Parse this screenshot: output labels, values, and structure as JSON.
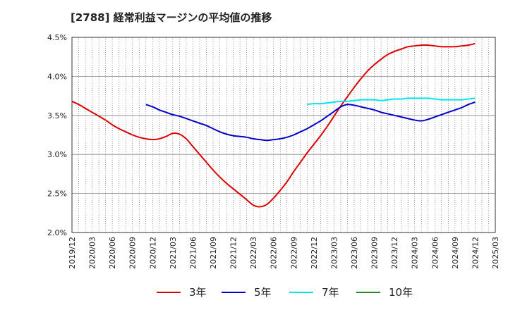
{
  "chart_data": {
    "type": "line",
    "title": "[2788]  経常利益マージンの平均値の推移",
    "y_ticks": [
      "2.0%",
      "2.5%",
      "3.0%",
      "3.5%",
      "4.0%",
      "4.5%"
    ],
    "ylim": [
      2.0,
      4.5
    ],
    "x_ticks": [
      "2019/12",
      "2020/03",
      "2020/06",
      "2020/09",
      "2020/12",
      "2021/03",
      "2021/06",
      "2021/09",
      "2021/12",
      "2022/03",
      "2022/06",
      "2022/09",
      "2022/12",
      "2023/03",
      "2023/06",
      "2023/09",
      "2023/12",
      "2024/03",
      "2024/06",
      "2024/09",
      "2024/12",
      "2025/03"
    ],
    "grid": true,
    "legend_position": "bottom",
    "series": [
      {
        "name": "3年",
        "color": "#dd0000",
        "points": [
          [
            "2019/12",
            3.68
          ],
          [
            "2020/01",
            3.64
          ],
          [
            "2020/02",
            3.59
          ],
          [
            "2020/03",
            3.54
          ],
          [
            "2020/04",
            3.49
          ],
          [
            "2020/05",
            3.44
          ],
          [
            "2020/06",
            3.38
          ],
          [
            "2020/07",
            3.33
          ],
          [
            "2020/08",
            3.29
          ],
          [
            "2020/09",
            3.25
          ],
          [
            "2020/10",
            3.22
          ],
          [
            "2020/11",
            3.2
          ],
          [
            "2020/12",
            3.19
          ],
          [
            "2021/01",
            3.2
          ],
          [
            "2021/02",
            3.23
          ],
          [
            "2021/03",
            3.27
          ],
          [
            "2021/04",
            3.26
          ],
          [
            "2021/05",
            3.2
          ],
          [
            "2021/06",
            3.1
          ],
          [
            "2021/07",
            3.0
          ],
          [
            "2021/08",
            2.9
          ],
          [
            "2021/09",
            2.8
          ],
          [
            "2021/10",
            2.71
          ],
          [
            "2021/11",
            2.63
          ],
          [
            "2021/12",
            2.56
          ],
          [
            "2022/01",
            2.49
          ],
          [
            "2022/02",
            2.42
          ],
          [
            "2022/03",
            2.35
          ],
          [
            "2022/04",
            2.33
          ],
          [
            "2022/05",
            2.36
          ],
          [
            "2022/06",
            2.44
          ],
          [
            "2022/07",
            2.54
          ],
          [
            "2022/08",
            2.65
          ],
          [
            "2022/09",
            2.78
          ],
          [
            "2022/10",
            2.9
          ],
          [
            "2022/11",
            3.02
          ],
          [
            "2022/12",
            3.13
          ],
          [
            "2023/01",
            3.24
          ],
          [
            "2023/02",
            3.36
          ],
          [
            "2023/03",
            3.49
          ],
          [
            "2023/04",
            3.62
          ],
          [
            "2023/05",
            3.74
          ],
          [
            "2023/06",
            3.86
          ],
          [
            "2023/07",
            3.97
          ],
          [
            "2023/08",
            4.07
          ],
          [
            "2023/09",
            4.15
          ],
          [
            "2023/10",
            4.22
          ],
          [
            "2023/11",
            4.28
          ],
          [
            "2023/12",
            4.32
          ],
          [
            "2024/01",
            4.35
          ],
          [
            "2024/02",
            4.38
          ],
          [
            "2024/03",
            4.39
          ],
          [
            "2024/04",
            4.4
          ],
          [
            "2024/05",
            4.4
          ],
          [
            "2024/06",
            4.39
          ],
          [
            "2024/07",
            4.38
          ],
          [
            "2024/08",
            4.38
          ],
          [
            "2024/09",
            4.38
          ],
          [
            "2024/10",
            4.39
          ],
          [
            "2024/11",
            4.4
          ],
          [
            "2024/12",
            4.42
          ]
        ]
      },
      {
        "name": "5年",
        "color": "#0000cc",
        "points": [
          [
            "2020/11",
            3.64
          ],
          [
            "2020/12",
            3.61
          ],
          [
            "2021/01",
            3.57
          ],
          [
            "2021/02",
            3.54
          ],
          [
            "2021/03",
            3.51
          ],
          [
            "2021/04",
            3.49
          ],
          [
            "2021/05",
            3.46
          ],
          [
            "2021/06",
            3.43
          ],
          [
            "2021/07",
            3.4
          ],
          [
            "2021/08",
            3.37
          ],
          [
            "2021/09",
            3.33
          ],
          [
            "2021/10",
            3.29
          ],
          [
            "2021/11",
            3.26
          ],
          [
            "2021/12",
            3.24
          ],
          [
            "2022/01",
            3.23
          ],
          [
            "2022/02",
            3.22
          ],
          [
            "2022/03",
            3.2
          ],
          [
            "2022/04",
            3.19
          ],
          [
            "2022/05",
            3.18
          ],
          [
            "2022/06",
            3.19
          ],
          [
            "2022/07",
            3.2
          ],
          [
            "2022/08",
            3.22
          ],
          [
            "2022/09",
            3.25
          ],
          [
            "2022/10",
            3.29
          ],
          [
            "2022/11",
            3.33
          ],
          [
            "2022/12",
            3.38
          ],
          [
            "2023/01",
            3.43
          ],
          [
            "2023/02",
            3.49
          ],
          [
            "2023/03",
            3.55
          ],
          [
            "2023/04",
            3.61
          ],
          [
            "2023/05",
            3.64
          ],
          [
            "2023/06",
            3.63
          ],
          [
            "2023/07",
            3.61
          ],
          [
            "2023/08",
            3.59
          ],
          [
            "2023/09",
            3.57
          ],
          [
            "2023/10",
            3.54
          ],
          [
            "2023/11",
            3.52
          ],
          [
            "2023/12",
            3.5
          ],
          [
            "2024/01",
            3.48
          ],
          [
            "2024/02",
            3.46
          ],
          [
            "2024/03",
            3.44
          ],
          [
            "2024/04",
            3.43
          ],
          [
            "2024/05",
            3.45
          ],
          [
            "2024/06",
            3.48
          ],
          [
            "2024/07",
            3.51
          ],
          [
            "2024/08",
            3.54
          ],
          [
            "2024/09",
            3.57
          ],
          [
            "2024/10",
            3.6
          ],
          [
            "2024/11",
            3.64
          ],
          [
            "2024/12",
            3.67
          ]
        ]
      },
      {
        "name": "7年",
        "color": "#00e5ee",
        "points": [
          [
            "2022/11",
            3.64
          ],
          [
            "2022/12",
            3.65
          ],
          [
            "2023/01",
            3.65
          ],
          [
            "2023/02",
            3.66
          ],
          [
            "2023/03",
            3.67
          ],
          [
            "2023/04",
            3.68
          ],
          [
            "2023/05",
            3.68
          ],
          [
            "2023/06",
            3.69
          ],
          [
            "2023/07",
            3.7
          ],
          [
            "2023/08",
            3.7
          ],
          [
            "2023/09",
            3.7
          ],
          [
            "2023/10",
            3.69
          ],
          [
            "2023/11",
            3.7
          ],
          [
            "2023/12",
            3.71
          ],
          [
            "2024/01",
            3.71
          ],
          [
            "2024/02",
            3.72
          ],
          [
            "2024/03",
            3.72
          ],
          [
            "2024/04",
            3.72
          ],
          [
            "2024/05",
            3.72
          ],
          [
            "2024/06",
            3.71
          ],
          [
            "2024/07",
            3.7
          ],
          [
            "2024/08",
            3.7
          ],
          [
            "2024/09",
            3.7
          ],
          [
            "2024/10",
            3.7
          ],
          [
            "2024/11",
            3.71
          ],
          [
            "2024/12",
            3.72
          ]
        ]
      },
      {
        "name": "10年",
        "color": "#228b22",
        "points": []
      }
    ]
  }
}
